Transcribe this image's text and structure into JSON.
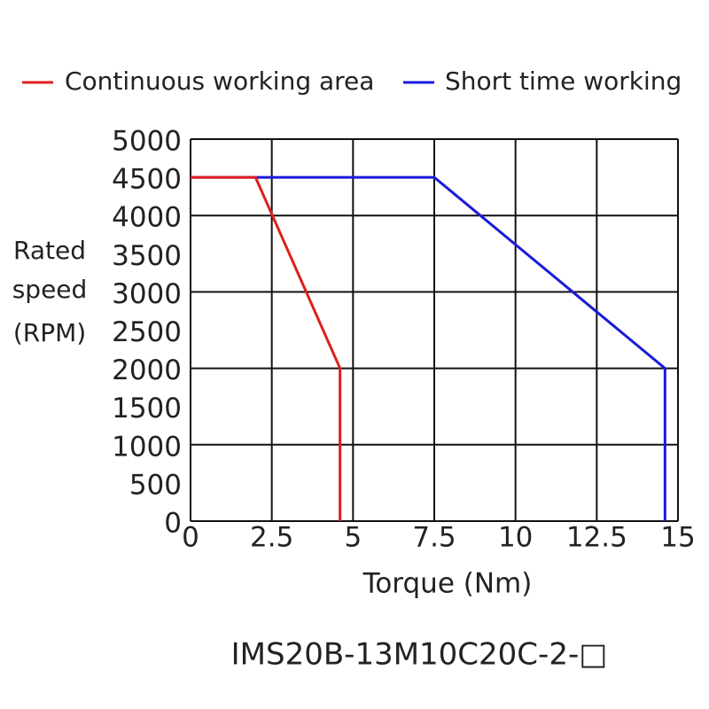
{
  "chart_data": {
    "type": "line",
    "title": "IMS20B-13M10C20C-2-□",
    "xlabel": "Torque (Nm)",
    "ylabel": [
      "Rated",
      "speed",
      "(RPM)"
    ],
    "xlim": [
      0,
      15
    ],
    "xticks": [
      0,
      2.5,
      5,
      7.5,
      10,
      12.5,
      15
    ],
    "ylim": [
      0,
      5000
    ],
    "yticks": [
      0,
      500,
      1000,
      1500,
      2000,
      2500,
      3000,
      3500,
      4000,
      4500,
      5000
    ],
    "grid": true,
    "legend": "top",
    "series": [
      {
        "name": "Short time working",
        "color": "#1a1adb",
        "x": [
          0,
          7.5,
          14.6,
          14.6
        ],
        "values": [
          4500,
          4500,
          2000,
          0
        ]
      },
      {
        "name": "Continuous working area",
        "color": "#e01e1e",
        "x": [
          0,
          2,
          4.6,
          4.6
        ],
        "values": [
          4500,
          4500,
          2000,
          0
        ]
      }
    ]
  }
}
